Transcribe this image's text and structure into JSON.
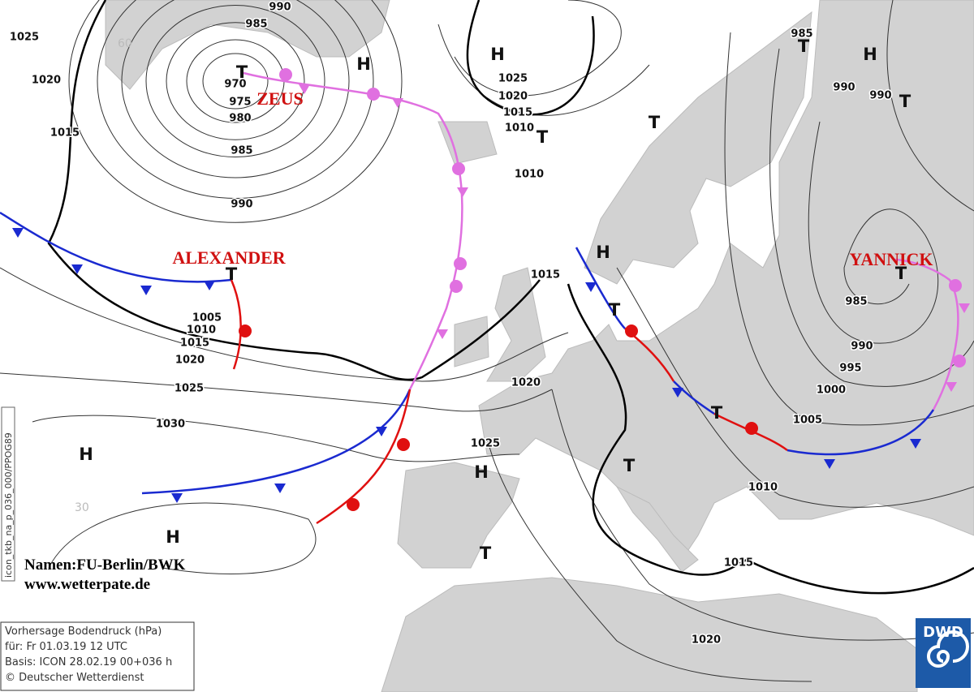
{
  "isobar_labels": [
    990,
    985,
    970,
    975,
    980,
    985,
    990,
    1025,
    1020,
    1015,
    1005,
    1010,
    1015,
    1020,
    1025,
    1030,
    1025,
    1020,
    1015,
    1010,
    1010,
    1015,
    1020,
    1025,
    985,
    990,
    990,
    985,
    990,
    995,
    1000,
    1005,
    1010,
    1015,
    1020
  ],
  "pressure_centers": [
    "T",
    "H",
    "H",
    "T",
    "T",
    "T",
    "H",
    "T",
    "T",
    "H",
    "T",
    "T",
    "T",
    "H",
    "H",
    "T",
    "H",
    "T"
  ],
  "system_names": [
    "ZEUS",
    "ALEXANDER",
    "YANNICK"
  ],
  "credits": [
    "Namen:FU-Berlin/BWK",
    "www.wetterpate.de"
  ],
  "info_box": [
    "Vorhersage Bodendruck (hPa)",
    "für:  Fr 01.03.19  12 UTC",
    "Basis: ICON  28.02.19 00+036 h",
    "© Deutscher Wetterdienst"
  ],
  "logo": "DWD",
  "run_id": "icon_tkb_na_p_036_000/PPOG89",
  "latitude_labels": [
    60,
    30
  ]
}
